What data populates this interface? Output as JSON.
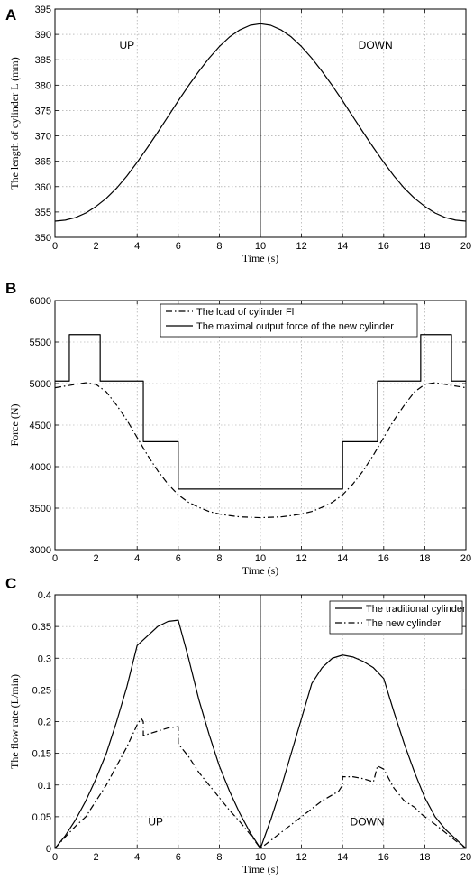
{
  "chart_data": [
    {
      "panel_label": "A",
      "type": "line",
      "xlabel": "Time (s)",
      "ylabel": "The length of cylinder L (mm)",
      "xlim": [
        0,
        20
      ],
      "ylim": [
        350,
        395
      ],
      "xticks": [
        "0",
        "2",
        "4",
        "6",
        "8",
        "10",
        "12",
        "14",
        "16",
        "18",
        "20"
      ],
      "yticks": [
        "350",
        "355",
        "360",
        "365",
        "370",
        "375",
        "380",
        "385",
        "390",
        "395"
      ],
      "grid": true,
      "annotations": [
        {
          "text": "UP",
          "x": 3.5,
          "y": 387.2
        },
        {
          "text": "DOWN",
          "x": 15.6,
          "y": 387.2
        }
      ],
      "vline_x": 10,
      "series": [
        {
          "name": "",
          "style": "solid",
          "color": "#000000",
          "x": [
            0,
            0.5,
            1,
            1.5,
            2,
            2.5,
            3,
            3.5,
            4,
            4.5,
            5,
            5.5,
            6,
            6.5,
            7,
            7.5,
            8,
            8.5,
            9,
            9.5,
            10,
            10.5,
            11,
            11.5,
            12,
            12.5,
            13,
            13.5,
            14,
            14.5,
            15,
            15.5,
            16,
            16.5,
            17,
            17.5,
            18,
            18.5,
            19,
            19.5,
            20
          ],
          "y": [
            353.2,
            353.4,
            353.9,
            354.8,
            356.1,
            357.7,
            359.7,
            362.1,
            364.8,
            367.7,
            370.7,
            373.8,
            376.9,
            379.9,
            382.7,
            385.3,
            387.6,
            389.5,
            390.9,
            391.8,
            392.1,
            391.8,
            390.9,
            389.5,
            387.6,
            385.3,
            382.7,
            379.9,
            376.9,
            373.8,
            370.7,
            367.7,
            364.8,
            362.1,
            359.7,
            357.7,
            356.1,
            354.8,
            353.9,
            353.4,
            353.2
          ]
        }
      ]
    },
    {
      "panel_label": "B",
      "type": "line",
      "xlabel": "Time (s)",
      "ylabel": "Force (N)",
      "xlim": [
        0,
        20
      ],
      "ylim": [
        3000,
        6000
      ],
      "xticks": [
        "0",
        "2",
        "4",
        "6",
        "8",
        "10",
        "12",
        "14",
        "16",
        "18",
        "20"
      ],
      "yticks": [
        "3000",
        "3500",
        "4000",
        "4500",
        "5000",
        "5500",
        "6000"
      ],
      "grid": true,
      "legend_position": "top-center",
      "series": [
        {
          "name": "The load of cylinder Fl",
          "style": "dashdot",
          "color": "#000000",
          "x": [
            0,
            0.5,
            1,
            1.5,
            2,
            2.5,
            3,
            3.5,
            4,
            4.5,
            5,
            5.5,
            6,
            6.5,
            7,
            7.5,
            8,
            8.5,
            9,
            9.5,
            10,
            10.5,
            11,
            11.5,
            12,
            12.5,
            13,
            13.5,
            14,
            14.5,
            15,
            15.5,
            16,
            16.5,
            17,
            17.5,
            18,
            18.5,
            19,
            19.5,
            20
          ],
          "y": [
            4950,
            4970,
            4990,
            5010,
            4990,
            4900,
            4740,
            4560,
            4350,
            4140,
            3950,
            3790,
            3660,
            3570,
            3510,
            3460,
            3430,
            3410,
            3395,
            3390,
            3385,
            3390,
            3395,
            3410,
            3430,
            3460,
            3510,
            3570,
            3660,
            3790,
            3950,
            4140,
            4350,
            4560,
            4740,
            4900,
            4990,
            5010,
            4990,
            4970,
            4950
          ]
        },
        {
          "name": "The maximal output force of the new cylinder",
          "style": "solid",
          "color": "#000000",
          "x": [
            0,
            0.7,
            0.7,
            2.2,
            2.2,
            4.3,
            4.3,
            6.0,
            6.0,
            14.0,
            14.0,
            15.7,
            15.7,
            17.8,
            17.8,
            19.3,
            19.3,
            20
          ],
          "y": [
            5030,
            5030,
            5590,
            5590,
            5030,
            5030,
            4300,
            4300,
            3730,
            3730,
            4300,
            4300,
            5030,
            5030,
            5590,
            5590,
            5030,
            5030
          ]
        }
      ]
    },
    {
      "panel_label": "C",
      "type": "line",
      "xlabel": "Time (s)",
      "ylabel": "The flow rate (L/min)",
      "xlim": [
        0,
        20
      ],
      "ylim": [
        0,
        0.4
      ],
      "xticks": [
        "0",
        "2",
        "4",
        "6",
        "8",
        "10",
        "12",
        "14",
        "16",
        "18",
        "20"
      ],
      "yticks": [
        "0",
        "0.05",
        "0.1",
        "0.15",
        "0.2",
        "0.25",
        "0.3",
        "0.35",
        "0.4"
      ],
      "grid": true,
      "legend_position": "top-right",
      "annotations": [
        {
          "text": "UP",
          "x": 4.9,
          "y": 0.036
        },
        {
          "text": "DOWN",
          "x": 15.2,
          "y": 0.036
        }
      ],
      "vline_x": 10,
      "series": [
        {
          "name": "The traditional cylinder",
          "style": "solid",
          "color": "#000000",
          "x": [
            0,
            0.5,
            1,
            1.5,
            2,
            2.5,
            3,
            3.5,
            4,
            4.5,
            5,
            5.5,
            6,
            6.5,
            7,
            7.5,
            8,
            8.5,
            9,
            9.5,
            10,
            10.5,
            11,
            11.5,
            12,
            12.5,
            13,
            13.5,
            14,
            14.5,
            15,
            15.5,
            16,
            16.5,
            17,
            17.5,
            18,
            18.5,
            19,
            19.5,
            20
          ],
          "y": [
            0,
            0.02,
            0.045,
            0.075,
            0.11,
            0.15,
            0.2,
            0.255,
            0.32,
            0.335,
            0.35,
            0.358,
            0.36,
            0.3,
            0.235,
            0.18,
            0.13,
            0.09,
            0.055,
            0.025,
            0,
            0.045,
            0.095,
            0.15,
            0.205,
            0.26,
            0.285,
            0.3,
            0.305,
            0.302,
            0.295,
            0.285,
            0.268,
            0.215,
            0.165,
            0.12,
            0.08,
            0.05,
            0.03,
            0.015,
            0
          ]
        },
        {
          "name": "The new cylinder",
          "style": "dashdot",
          "color": "#000000",
          "x": [
            0,
            0.5,
            1,
            1.5,
            2,
            2.5,
            3,
            3.5,
            4,
            4.2,
            4.3,
            4.3,
            5,
            5.5,
            6,
            6,
            6.5,
            7,
            7.5,
            8,
            8.5,
            9,
            9.5,
            10,
            11,
            12,
            13,
            13.8,
            14,
            14,
            14.5,
            15,
            15.5,
            15.7,
            16,
            16.5,
            17,
            17.5,
            17.8,
            18,
            18.5,
            19,
            19.5,
            20
          ],
          "y": [
            0,
            0.018,
            0.035,
            0.05,
            0.075,
            0.1,
            0.13,
            0.16,
            0.195,
            0.205,
            0.2,
            0.178,
            0.185,
            0.19,
            0.192,
            0.165,
            0.145,
            0.12,
            0.1,
            0.08,
            0.06,
            0.042,
            0.022,
            0,
            0.025,
            0.05,
            0.075,
            0.09,
            0.1,
            0.113,
            0.113,
            0.11,
            0.105,
            0.13,
            0.125,
            0.095,
            0.075,
            0.065,
            0.055,
            0.05,
            0.038,
            0.025,
            0.012,
            0
          ]
        }
      ]
    }
  ]
}
